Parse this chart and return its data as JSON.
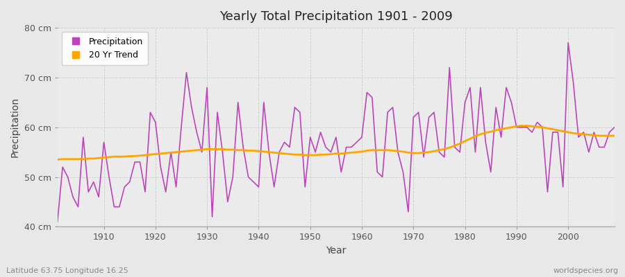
{
  "title": "Yearly Total Precipitation 1901 - 2009",
  "xlabel": "Year",
  "ylabel": "Precipitation",
  "subtitle_left": "Latitude 63.75 Longitude 16.25",
  "subtitle_right": "worldspecies.org",
  "line_color": "#BB44BB",
  "trend_color": "#FFA500",
  "fig_bg_color": "#E8E8E8",
  "plot_bg_color": "#EBEBEB",
  "ylim": [
    40,
    80
  ],
  "yticks": [
    40,
    50,
    60,
    70,
    80
  ],
  "ytick_labels": [
    "40 cm",
    "50 cm",
    "60 cm",
    "70 cm",
    "80 cm"
  ],
  "years": [
    1901,
    1902,
    1903,
    1904,
    1905,
    1906,
    1907,
    1908,
    1909,
    1910,
    1911,
    1912,
    1913,
    1914,
    1915,
    1916,
    1917,
    1918,
    1919,
    1920,
    1921,
    1922,
    1923,
    1924,
    1925,
    1926,
    1927,
    1928,
    1929,
    1930,
    1931,
    1932,
    1933,
    1934,
    1935,
    1936,
    1937,
    1938,
    1939,
    1940,
    1941,
    1942,
    1943,
    1944,
    1945,
    1946,
    1947,
    1948,
    1949,
    1950,
    1951,
    1952,
    1953,
    1954,
    1955,
    1956,
    1957,
    1958,
    1959,
    1960,
    1961,
    1962,
    1963,
    1964,
    1965,
    1966,
    1967,
    1968,
    1969,
    1970,
    1971,
    1972,
    1973,
    1974,
    1975,
    1976,
    1977,
    1978,
    1979,
    1980,
    1981,
    1982,
    1983,
    1984,
    1985,
    1986,
    1987,
    1988,
    1989,
    1990,
    1991,
    1992,
    1993,
    1994,
    1995,
    1996,
    1997,
    1998,
    1999,
    2000,
    2001,
    2002,
    2003,
    2004,
    2005,
    2006,
    2007,
    2008,
    2009
  ],
  "precip": [
    41,
    52,
    50,
    46,
    44,
    58,
    47,
    49,
    46,
    57,
    50,
    44,
    44,
    48,
    49,
    53,
    53,
    47,
    63,
    61,
    52,
    47,
    55,
    48,
    60,
    71,
    64,
    59,
    55,
    68,
    42,
    63,
    55,
    45,
    50,
    65,
    56,
    50,
    49,
    48,
    65,
    55,
    48,
    55,
    57,
    56,
    64,
    63,
    48,
    58,
    55,
    59,
    56,
    55,
    58,
    51,
    56,
    56,
    57,
    58,
    67,
    66,
    51,
    50,
    63,
    64,
    55,
    51,
    43,
    62,
    63,
    54,
    62,
    63,
    55,
    54,
    72,
    56,
    55,
    65,
    68,
    55,
    68,
    57,
    51,
    64,
    58,
    68,
    65,
    60,
    60,
    60,
    59,
    61,
    60,
    47,
    59,
    59,
    48,
    77,
    69,
    58,
    59,
    55,
    59,
    56,
    56,
    59,
    60
  ],
  "trend": [
    53.5,
    53.6,
    53.6,
    53.6,
    53.6,
    53.6,
    53.7,
    53.7,
    53.8,
    53.9,
    54.0,
    54.1,
    54.1,
    54.1,
    54.2,
    54.2,
    54.3,
    54.4,
    54.5,
    54.6,
    54.7,
    54.8,
    54.9,
    55.0,
    55.1,
    55.2,
    55.3,
    55.4,
    55.5,
    55.6,
    55.6,
    55.6,
    55.6,
    55.5,
    55.5,
    55.4,
    55.4,
    55.3,
    55.3,
    55.2,
    55.1,
    55.0,
    54.9,
    54.8,
    54.7,
    54.6,
    54.5,
    54.5,
    54.4,
    54.4,
    54.4,
    54.5,
    54.5,
    54.6,
    54.7,
    54.7,
    54.8,
    54.9,
    55.0,
    55.1,
    55.3,
    55.4,
    55.4,
    55.4,
    55.4,
    55.3,
    55.2,
    55.1,
    54.9,
    54.8,
    54.8,
    54.9,
    55.0,
    55.2,
    55.4,
    55.6,
    55.9,
    56.3,
    56.7,
    57.2,
    57.7,
    58.2,
    58.6,
    58.9,
    59.1,
    59.4,
    59.6,
    59.8,
    60.0,
    60.2,
    60.3,
    60.3,
    60.2,
    60.1,
    60.0,
    59.8,
    59.6,
    59.4,
    59.2,
    59.0,
    58.8,
    58.7,
    58.6,
    58.5,
    58.4,
    58.3,
    58.3,
    58.3,
    58.3
  ]
}
